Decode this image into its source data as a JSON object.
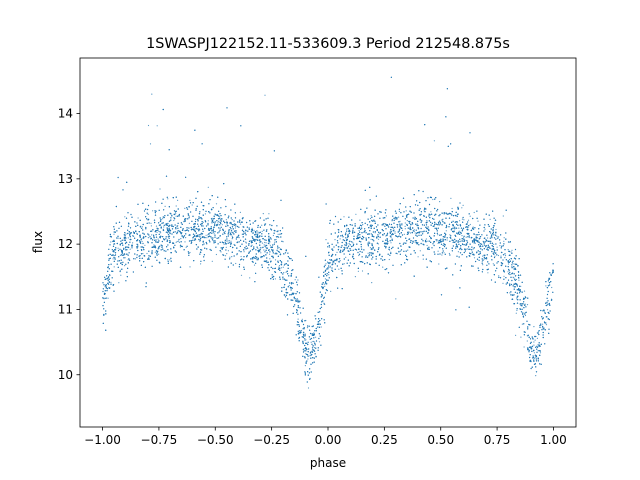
{
  "chart_data": {
    "type": "scatter",
    "title": "1SWASPJ122152.11-533609.3 Period 212548.875s",
    "xlabel": "phase",
    "ylabel": "flux",
    "xlim": [
      -1.1,
      1.1
    ],
    "ylim": [
      9.2,
      14.85
    ],
    "x_ticks": [
      -1.0,
      -0.75,
      -0.5,
      -0.25,
      0.0,
      0.25,
      0.5,
      0.75,
      1.0
    ],
    "x_tick_labels": [
      "−1.00",
      "−0.75",
      "−0.50",
      "−0.25",
      "0.00",
      "0.25",
      "0.50",
      "0.75",
      "1.00"
    ],
    "y_ticks": [
      10,
      11,
      12,
      13,
      14
    ],
    "y_tick_labels": [
      "10",
      "11",
      "12",
      "13",
      "14"
    ],
    "grid": false,
    "legend": "none",
    "marker_color": "#1f77b4",
    "phase_range": [
      -1.0,
      1.0
    ],
    "profile": {
      "phase": [
        -1.0,
        -0.95,
        -0.9,
        -0.8,
        -0.7,
        -0.6,
        -0.5,
        -0.4,
        -0.3,
        -0.25,
        -0.2,
        -0.15,
        -0.12,
        -0.1,
        -0.08,
        -0.05,
        -0.02,
        0.0,
        0.05,
        0.1,
        0.2,
        0.3,
        0.4,
        0.5,
        0.6,
        0.7,
        0.75,
        0.8,
        0.85,
        0.88,
        0.9,
        0.92,
        0.95,
        0.98,
        1.0
      ],
      "flux": [
        11.0,
        11.9,
        12.0,
        12.1,
        12.2,
        12.25,
        12.2,
        12.1,
        12.0,
        11.9,
        11.7,
        11.2,
        10.8,
        10.4,
        10.3,
        10.6,
        11.2,
        11.8,
        11.9,
        12.0,
        12.1,
        12.2,
        12.25,
        12.2,
        12.1,
        12.0,
        11.9,
        11.7,
        11.2,
        10.8,
        10.4,
        10.3,
        10.6,
        11.2,
        11.6
      ],
      "scatter": 0.22
    }
  }
}
